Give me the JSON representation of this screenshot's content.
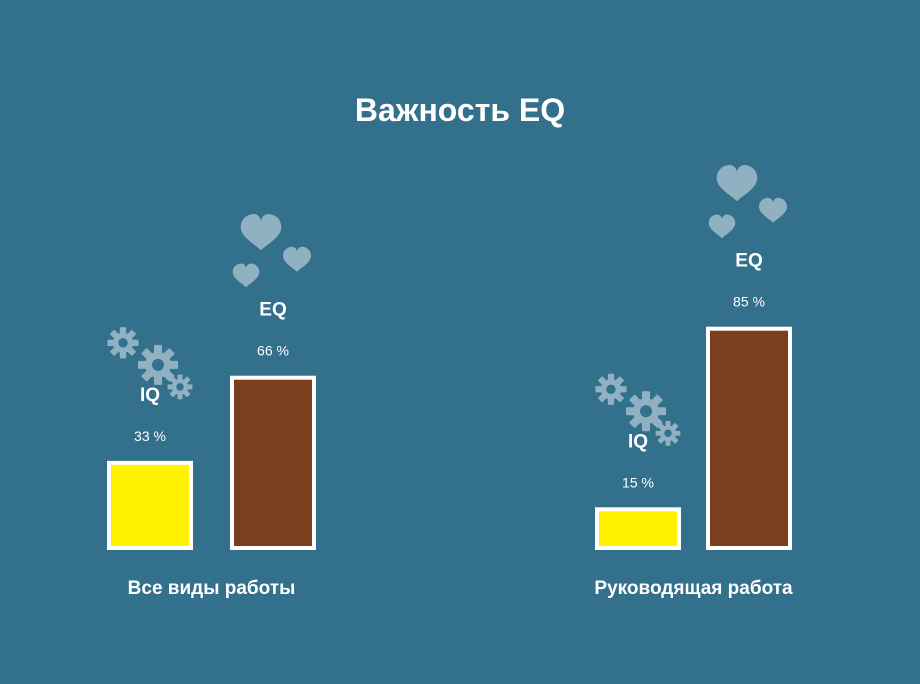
{
  "chart_data": {
    "type": "bar",
    "title": "Важность EQ",
    "categories": [
      "Все виды работы",
      "Руководящая работа"
    ],
    "series": [
      {
        "name": "IQ",
        "values": [
          33,
          15
        ],
        "value_labels": [
          "33 %",
          "15 %"
        ],
        "color": "#fff200",
        "icon": "gears-icon"
      },
      {
        "name": "EQ",
        "values": [
          66,
          85
        ],
        "value_labels": [
          "66 %",
          "85 %"
        ],
        "color": "#7a3f1d",
        "icon": "hearts-icon"
      }
    ],
    "ylim": [
      0,
      100
    ],
    "grid": false,
    "legend": "none"
  },
  "colors": {
    "background": "#33708c",
    "bar_border": "#ffffff",
    "icon": "#8fb1c2"
  }
}
